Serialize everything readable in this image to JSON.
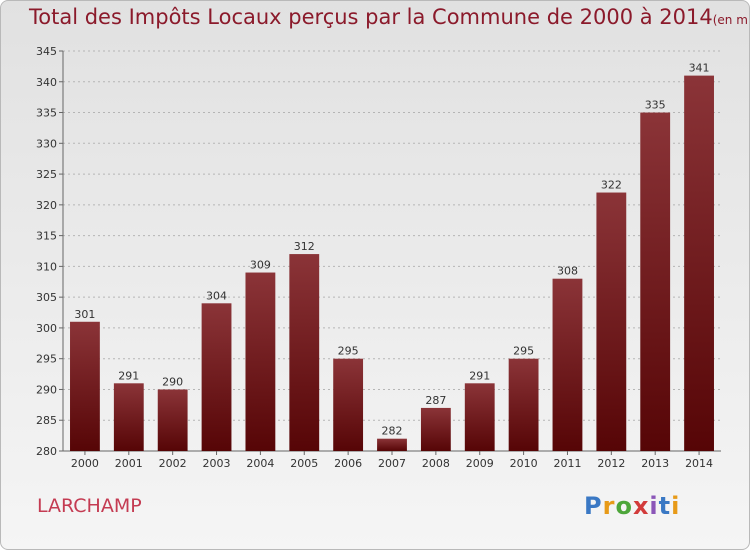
{
  "title": "Total des Impôts Locaux perçus par la Commune de 2000 à 2014",
  "title_unit": "(en milliers d'€)",
  "commune": "LARCHAMP",
  "logo": {
    "text": "Proxiti"
  },
  "colors": {
    "bar_light": "#8b3438",
    "bar_dark": "#560506",
    "title": "#8b1a2b",
    "commune": "#c43b52",
    "grid": "#b5b5b5"
  },
  "chart_data": {
    "type": "bar",
    "title": "Total des Impôts Locaux perçus par la Commune de 2000 à 2014",
    "ylabel": "",
    "xlabel": "",
    "ylim": [
      280,
      345
    ],
    "ytick_step": 5,
    "grid": "horizontal dashed",
    "categories": [
      "2000",
      "2001",
      "2002",
      "2003",
      "2004",
      "2005",
      "2006",
      "2007",
      "2008",
      "2009",
      "2010",
      "2011",
      "2012",
      "2013",
      "2014"
    ],
    "values": [
      301,
      291,
      290,
      304,
      309,
      312,
      295,
      282,
      287,
      291,
      295,
      308,
      322,
      335,
      341
    ]
  }
}
